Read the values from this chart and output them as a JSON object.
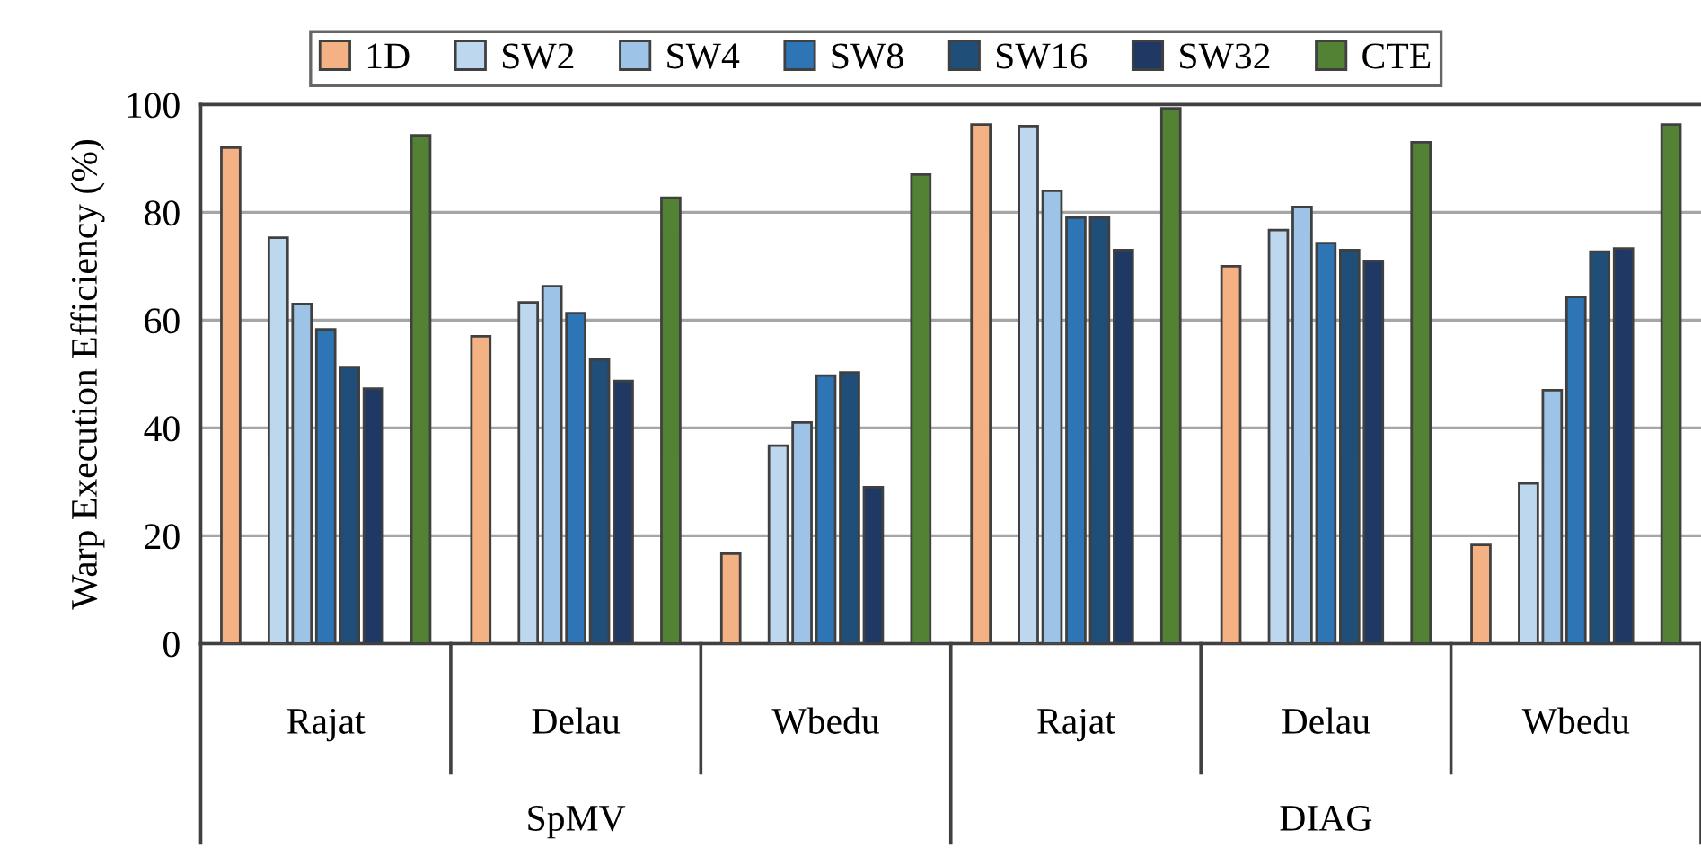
{
  "chart_data": {
    "type": "bar",
    "ylabel": "Warp Execution Efficiency (%)",
    "categories": [
      "Rajat",
      "Delau",
      "Wbedu",
      "Rajat",
      "Delau",
      "Wbedu"
    ],
    "annotations": [
      "SpMV",
      "DIAG"
    ],
    "series": [
      {
        "name": "1D",
        "color": "#f4b183",
        "values": [
          92,
          57,
          16.7,
          96.3,
          70,
          18.3
        ]
      },
      {
        "name": "SW2",
        "color": "#bdd7ee",
        "values": [
          75.3,
          63.3,
          36.7,
          96,
          76.7,
          29.7
        ]
      },
      {
        "name": "SW4",
        "color": "#9dc3e6",
        "values": [
          63,
          66.3,
          41,
          84,
          81,
          47
        ]
      },
      {
        "name": "SW8",
        "color": "#2e75b6",
        "values": [
          58.3,
          61.3,
          49.7,
          79,
          74.3,
          64.3
        ]
      },
      {
        "name": "SW16",
        "color": "#1f4e79",
        "values": [
          51.3,
          52.7,
          50.3,
          79,
          73,
          72.7
        ]
      },
      {
        "name": "SW32",
        "color": "#203864",
        "values": [
          47.3,
          48.7,
          29,
          73,
          71,
          73.3
        ]
      },
      {
        "name": "CTE",
        "color": "#548235",
        "values": [
          94.3,
          82.7,
          87,
          99.3,
          93,
          96.3
        ]
      }
    ],
    "ylim": [
      0,
      100
    ],
    "yticks": [
      0,
      20,
      40,
      60,
      80,
      100
    ],
    "grid": "y",
    "legend": "top"
  }
}
